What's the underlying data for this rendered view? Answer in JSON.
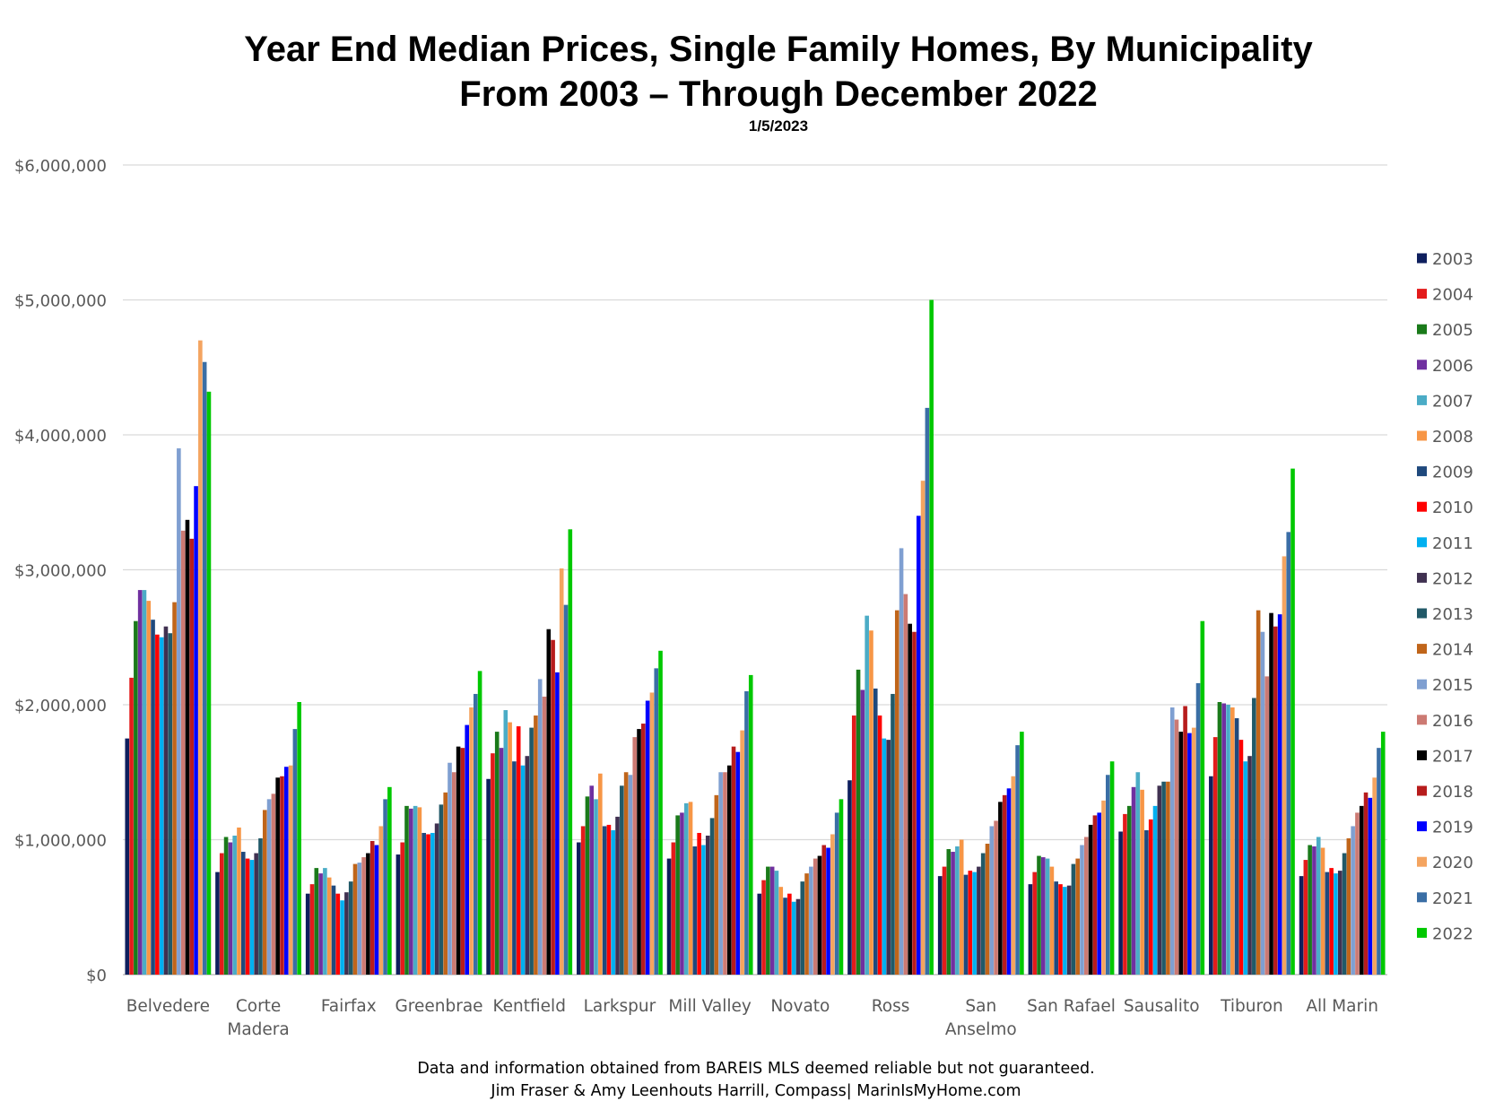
{
  "title_line1": "Year End Median Prices, Single Family Homes, By Municipality",
  "title_line2": "From 2003 – Through December 2022",
  "date": "1/5/2023",
  "footer_line1": "Data and information obtained from BAREIS MLS deemed reliable but not guaranteed.",
  "footer_line2": "Jim Fraser & Amy Leenhouts Harrill, Compass| MarinIsMyHome.com",
  "chart_data": {
    "type": "bar",
    "title": "Year End Median Prices, Single Family Homes, By Municipality",
    "xlabel": "",
    "ylabel": "",
    "ylim": [
      0,
      6000000
    ],
    "yticks": [
      0,
      1000000,
      2000000,
      3000000,
      4000000,
      5000000,
      6000000
    ],
    "ytick_labels": [
      "$0",
      "$1,000,000",
      "$2,000,000",
      "$3,000,000",
      "$4,000,000",
      "$5,000,000",
      "$6,000,000"
    ],
    "grid": true,
    "legend_position": "right",
    "categories": [
      [
        "Belvedere"
      ],
      [
        "Corte",
        "Madera"
      ],
      [
        "Fairfax"
      ],
      [
        "Greenbrae"
      ],
      [
        "Kentfield"
      ],
      [
        "Larkspur"
      ],
      [
        "Mill Valley"
      ],
      [
        "Novato"
      ],
      [
        "Ross"
      ],
      [
        "San",
        "Anselmo"
      ],
      [
        "San Rafael"
      ],
      [
        "Sausalito"
      ],
      [
        "Tiburon"
      ],
      [
        "All Marin"
      ]
    ],
    "series": [
      {
        "name": "2003",
        "color": "#0e1f5e",
        "values": [
          1750000,
          760000,
          600000,
          890000,
          1450000,
          980000,
          860000,
          600000,
          1440000,
          730000,
          670000,
          1060000,
          1470000,
          730000
        ]
      },
      {
        "name": "2004",
        "color": "#e31b1b",
        "values": [
          2200000,
          900000,
          670000,
          980000,
          1640000,
          1100000,
          980000,
          700000,
          1920000,
          800000,
          760000,
          1190000,
          1760000,
          850000
        ]
      },
      {
        "name": "2005",
        "color": "#1a7a1a",
        "values": [
          2620000,
          1020000,
          790000,
          1250000,
          1800000,
          1320000,
          1180000,
          800000,
          2260000,
          930000,
          880000,
          1250000,
          2020000,
          960000
        ]
      },
      {
        "name": "2006",
        "color": "#7030a0",
        "values": [
          2850000,
          980000,
          750000,
          1230000,
          1680000,
          1400000,
          1200000,
          800000,
          2110000,
          910000,
          870000,
          1390000,
          2010000,
          950000
        ]
      },
      {
        "name": "2007",
        "color": "#4bacc6",
        "values": [
          2850000,
          1030000,
          790000,
          1250000,
          1960000,
          1300000,
          1270000,
          770000,
          2660000,
          950000,
          860000,
          1500000,
          2000000,
          1020000
        ]
      },
      {
        "name": "2008",
        "color": "#f79646",
        "values": [
          2770000,
          1090000,
          720000,
          1240000,
          1870000,
          1490000,
          1280000,
          650000,
          2550000,
          1000000,
          800000,
          1370000,
          1980000,
          940000
        ]
      },
      {
        "name": "2009",
        "color": "#1f497d",
        "values": [
          2630000,
          910000,
          660000,
          1050000,
          1580000,
          1100000,
          950000,
          570000,
          2120000,
          740000,
          690000,
          1070000,
          1900000,
          760000
        ]
      },
      {
        "name": "2010",
        "color": "#ff0000",
        "values": [
          2520000,
          860000,
          600000,
          1040000,
          1840000,
          1110000,
          1050000,
          600000,
          1920000,
          770000,
          670000,
          1150000,
          1740000,
          790000
        ]
      },
      {
        "name": "2011",
        "color": "#00b0f0",
        "values": [
          2500000,
          850000,
          550000,
          1050000,
          1550000,
          1070000,
          960000,
          540000,
          1750000,
          760000,
          650000,
          1250000,
          1580000,
          750000
        ]
      },
      {
        "name": "2012",
        "color": "#403151",
        "values": [
          2580000,
          900000,
          610000,
          1120000,
          1620000,
          1170000,
          1030000,
          560000,
          1740000,
          800000,
          660000,
          1400000,
          1620000,
          770000
        ]
      },
      {
        "name": "2013",
        "color": "#215968",
        "values": [
          2530000,
          1010000,
          690000,
          1260000,
          1830000,
          1400000,
          1160000,
          690000,
          2080000,
          900000,
          820000,
          1430000,
          2050000,
          900000
        ]
      },
      {
        "name": "2014",
        "color": "#c0651a",
        "values": [
          2760000,
          1220000,
          820000,
          1350000,
          1920000,
          1500000,
          1330000,
          750000,
          2700000,
          970000,
          860000,
          1430000,
          2700000,
          1010000
        ]
      },
      {
        "name": "2015",
        "color": "#7f9fd1",
        "values": [
          3900000,
          1300000,
          830000,
          1570000,
          2190000,
          1480000,
          1500000,
          800000,
          3160000,
          1100000,
          960000,
          1980000,
          2540000,
          1100000
        ]
      },
      {
        "name": "2016",
        "color": "#cc7a73",
        "values": [
          3290000,
          1340000,
          870000,
          1500000,
          2060000,
          1760000,
          1500000,
          860000,
          2820000,
          1140000,
          1020000,
          1890000,
          2210000,
          1200000
        ]
      },
      {
        "name": "2017",
        "color": "#000000",
        "values": [
          3370000,
          1460000,
          900000,
          1690000,
          2560000,
          1820000,
          1550000,
          880000,
          2600000,
          1280000,
          1110000,
          1800000,
          2680000,
          1250000
        ]
      },
      {
        "name": "2018",
        "color": "#b71c1c",
        "values": [
          3230000,
          1470000,
          990000,
          1680000,
          2480000,
          1860000,
          1690000,
          960000,
          2540000,
          1330000,
          1180000,
          1990000,
          2580000,
          1350000
        ]
      },
      {
        "name": "2019",
        "color": "#0000ff",
        "values": [
          3620000,
          1540000,
          960000,
          1850000,
          2240000,
          2030000,
          1650000,
          940000,
          3400000,
          1380000,
          1200000,
          1790000,
          2670000,
          1310000
        ]
      },
      {
        "name": "2020",
        "color": "#f4a460",
        "values": [
          4700000,
          1550000,
          1100000,
          1980000,
          3010000,
          2090000,
          1810000,
          1040000,
          3660000,
          1470000,
          1290000,
          1830000,
          3100000,
          1460000
        ]
      },
      {
        "name": "2021",
        "color": "#3a6ea5",
        "values": [
          4540000,
          1820000,
          1300000,
          2080000,
          2740000,
          2270000,
          2100000,
          1200000,
          4200000,
          1700000,
          1480000,
          2160000,
          3280000,
          1680000
        ]
      },
      {
        "name": "2022",
        "color": "#00c800",
        "values": [
          4320000,
          2020000,
          1390000,
          2250000,
          3300000,
          2400000,
          2220000,
          1300000,
          5000000,
          1800000,
          1580000,
          2620000,
          3750000,
          1800000
        ]
      }
    ]
  }
}
